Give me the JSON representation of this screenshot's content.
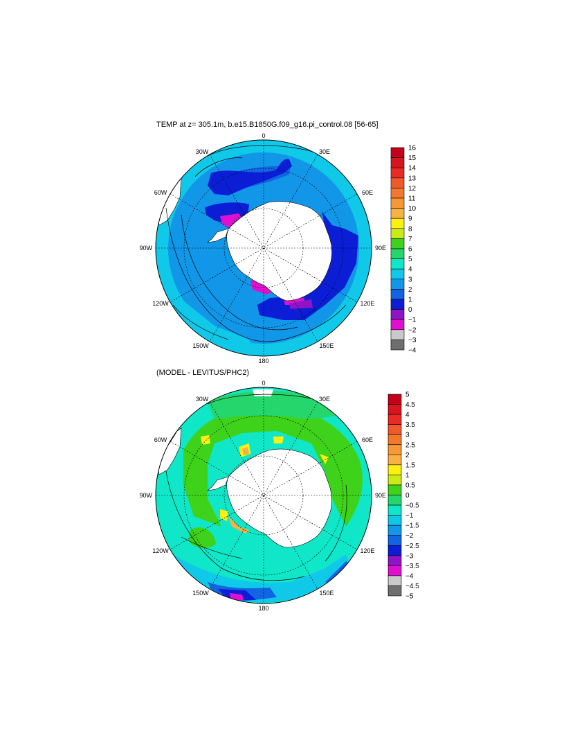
{
  "figure": {
    "panels": [
      {
        "title": "TEMP at z= 305.1m, b.e15.B1850G.f09_g16.pi_control.08 [56-65]",
        "lon_labels": [
          "0",
          "30E",
          "60E",
          "90E",
          "120E",
          "150E",
          "180",
          "150W",
          "120W",
          "90W",
          "60W",
          "30W"
        ],
        "colorbar": {
          "labels": [
            "16",
            "15",
            "14",
            "13",
            "12",
            "11",
            "10",
            "9",
            "8",
            "7",
            "6",
            "5",
            "4",
            "3",
            "2",
            "1",
            "0",
            "−1",
            "−2",
            "−3",
            "−4"
          ],
          "colors": [
            "#c4001a",
            "#d8141e",
            "#ea2a24",
            "#f0592a",
            "#f3782d",
            "#f69835",
            "#f8b244",
            "#fcf013",
            "#cbeb18",
            "#3fd21a",
            "#25d66c",
            "#10e7c8",
            "#10c8e8",
            "#1196e8",
            "#1265e2",
            "#0b1ed6",
            "#8e14c6",
            "#e010d0",
            "#c9c9c9",
            "#6e6e6e"
          ]
        }
      },
      {
        "title": "(MODEL - LEVITUS/PHC2)",
        "lon_labels": [
          "0",
          "30E",
          "60E",
          "90E",
          "120E",
          "150E",
          "180",
          "150W",
          "120W",
          "90W",
          "60W",
          "30W"
        ],
        "colorbar": {
          "labels": [
            "5",
            "4.5",
            "4",
            "3.5",
            "3",
            "2.5",
            "2",
            "1.5",
            "1",
            "0.5",
            "0",
            "−0.5",
            "−1",
            "−1.5",
            "−2",
            "−2.5",
            "−3",
            "−3.5",
            "−4",
            "−4.5",
            "−5"
          ],
          "colors": [
            "#c4001a",
            "#d8141e",
            "#ea2a24",
            "#f0592a",
            "#f3782d",
            "#f69835",
            "#f8b244",
            "#fcf013",
            "#cbeb18",
            "#3fd21a",
            "#25d66c",
            "#10e7c8",
            "#10c8e8",
            "#1196e8",
            "#1265e2",
            "#0b1ed6",
            "#8e14c6",
            "#e010d0",
            "#c9c9c9",
            "#6e6e6e"
          ]
        }
      }
    ]
  }
}
